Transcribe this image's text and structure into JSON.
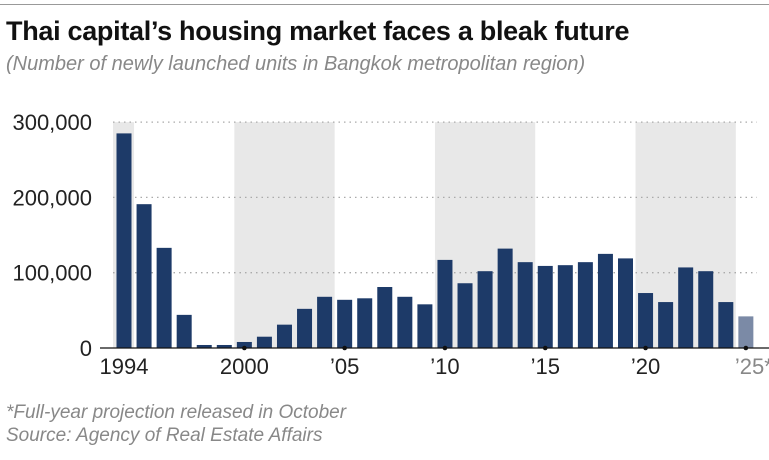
{
  "title": "Thai capital’s housing market faces a bleak future",
  "subtitle": "(Number of newly launched units in Bangkok metropolitan region)",
  "footer": {
    "note": "*Full-year projection released in October",
    "source": "Source: Agency of Real Estate Affairs"
  },
  "chart_data": {
    "type": "bar",
    "title": "Thai capital’s housing market faces a bleak future",
    "xlabel": "",
    "ylabel": "Number of newly launched units",
    "ylim": [
      0,
      300000
    ],
    "yticks": [
      0,
      100000,
      200000,
      300000
    ],
    "ytick_labels": [
      "0",
      "100,000",
      "200,000",
      "300,000"
    ],
    "xtick_years": [
      1994,
      2000,
      2005,
      2010,
      2015,
      2020,
      2025
    ],
    "xtick_labels": [
      "1994",
      "2000",
      "’05",
      "’10",
      "’15",
      "’20",
      "’25*"
    ],
    "shaded_periods": [
      [
        1990,
        1994
      ],
      [
        2000,
        2004
      ],
      [
        2010,
        2014
      ],
      [
        2020,
        2024
      ]
    ],
    "categories": [
      1994,
      1995,
      1996,
      1997,
      1998,
      1999,
      2000,
      2001,
      2002,
      2003,
      2004,
      2005,
      2006,
      2007,
      2008,
      2009,
      2010,
      2011,
      2012,
      2013,
      2014,
      2015,
      2016,
      2017,
      2018,
      2019,
      2020,
      2021,
      2022,
      2023,
      2024,
      2025
    ],
    "values": [
      285000,
      191000,
      133000,
      44000,
      4000,
      4000,
      8000,
      15000,
      31000,
      52000,
      68000,
      64000,
      66000,
      81000,
      68000,
      58000,
      117000,
      86000,
      102000,
      132000,
      114000,
      109000,
      110000,
      114000,
      125000,
      119000,
      73000,
      61000,
      107000,
      102000,
      61000,
      42000
    ],
    "projected": [
      2025
    ],
    "colors": {
      "bar": "#1d3a68",
      "projected": "#7b8aa6",
      "shade": "#e8e8e8"
    }
  }
}
